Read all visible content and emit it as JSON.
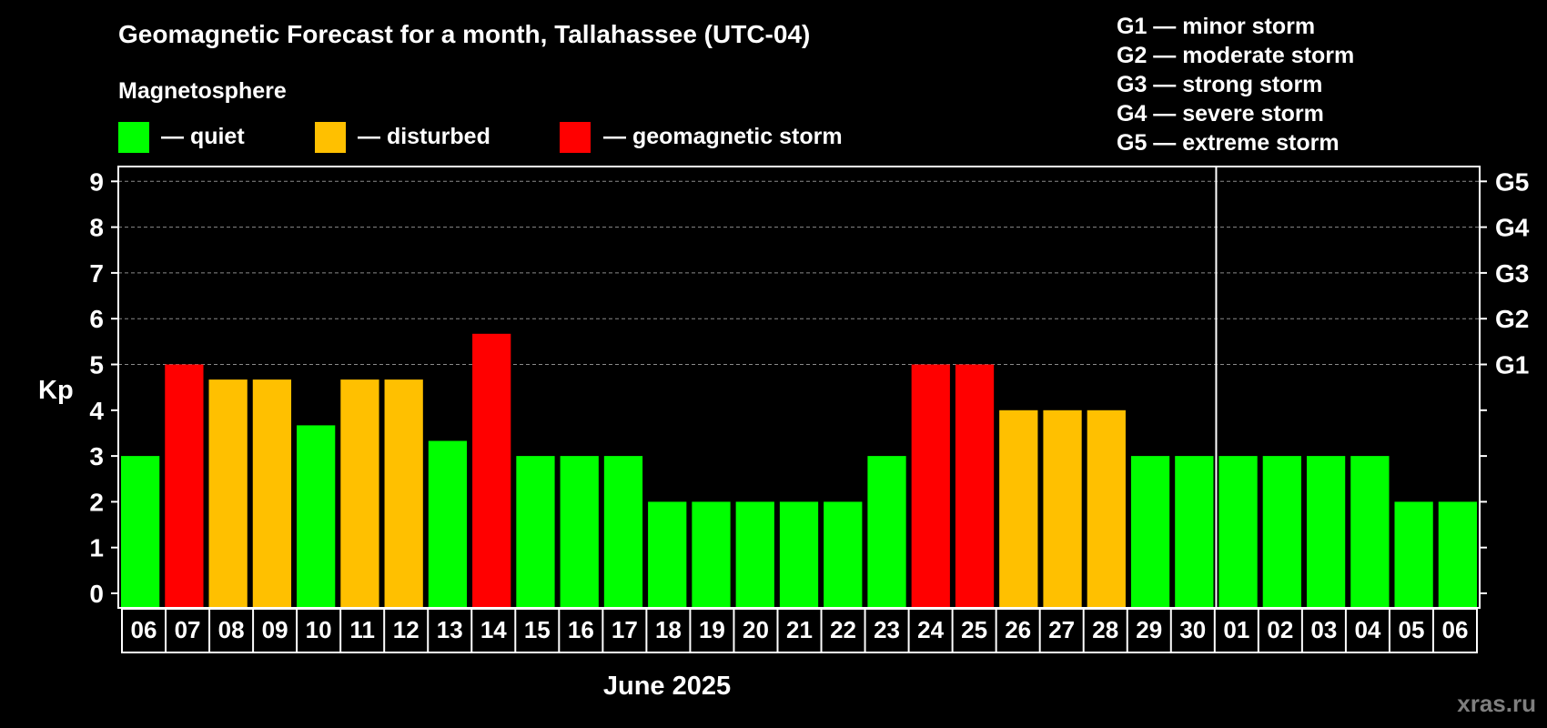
{
  "chart_data": {
    "type": "bar",
    "title": "Geomagnetic Forecast for a month, Tallahassee (UTC-04)",
    "legend_title": "Magnetosphere",
    "legend": [
      {
        "key": "quiet",
        "label": "— quiet",
        "color": "#00ff00"
      },
      {
        "key": "disturbed",
        "label": "— disturbed",
        "color": "#ffc000"
      },
      {
        "key": "storm",
        "label": "— geomagnetic storm",
        "color": "#ff0000"
      }
    ],
    "g_scale_legend": [
      "G1 — minor storm",
      "G2 — moderate storm",
      "G3 — strong storm",
      "G4 — severe storm",
      "G5 — extreme storm"
    ],
    "ylabel": "Kp",
    "xlabel": "June 2025",
    "ylim": [
      0,
      9
    ],
    "yticks": [
      "0",
      "1",
      "2",
      "3",
      "4",
      "5",
      "6",
      "7",
      "8",
      "9"
    ],
    "right_ticks": [
      {
        "kp": 5,
        "label": "G1"
      },
      {
        "kp": 6,
        "label": "G2"
      },
      {
        "kp": 7,
        "label": "G3"
      },
      {
        "kp": 8,
        "label": "G4"
      },
      {
        "kp": 9,
        "label": "G5"
      }
    ],
    "categories": [
      "06",
      "07",
      "08",
      "09",
      "10",
      "11",
      "12",
      "13",
      "14",
      "15",
      "16",
      "17",
      "18",
      "19",
      "20",
      "21",
      "22",
      "23",
      "24",
      "25",
      "26",
      "27",
      "28",
      "29",
      "30",
      "01",
      "02",
      "03",
      "04",
      "05",
      "06"
    ],
    "values": [
      3,
      5,
      4.67,
      4.67,
      3.67,
      4.67,
      4.67,
      3.33,
      5.67,
      3,
      3,
      3,
      2,
      2,
      2,
      2,
      2,
      3,
      5,
      5,
      4,
      4,
      4,
      3,
      3,
      3,
      3,
      3,
      3,
      2,
      2
    ],
    "levels": [
      "quiet",
      "storm",
      "disturbed",
      "disturbed",
      "quiet",
      "disturbed",
      "disturbed",
      "quiet",
      "storm",
      "quiet",
      "quiet",
      "quiet",
      "quiet",
      "quiet",
      "quiet",
      "quiet",
      "quiet",
      "quiet",
      "storm",
      "storm",
      "disturbed",
      "disturbed",
      "disturbed",
      "quiet",
      "quiet",
      "quiet",
      "quiet",
      "quiet",
      "quiet",
      "quiet",
      "quiet"
    ],
    "month_divider_after_index": 24,
    "grid": true
  },
  "watermark": "xras.ru"
}
